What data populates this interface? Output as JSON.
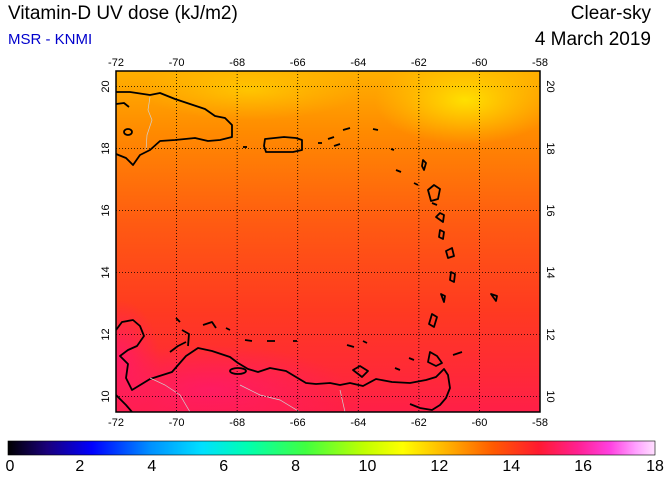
{
  "title": "Vitamin-D UV dose (kJ/m2)",
  "source": "MSR - KNMI",
  "sky_condition": "Clear-sky",
  "date": "4 March 2019",
  "map": {
    "lon_range": [
      -72,
      -58
    ],
    "lat_range": [
      9.5,
      20.5
    ],
    "lon_ticks": [
      -72,
      -70,
      -68,
      -66,
      -64,
      -62,
      -60,
      -58
    ],
    "lat_ticks": [
      10,
      12,
      14,
      16,
      18,
      20
    ],
    "lon_tick_labels": [
      "-72",
      "-70",
      "-68",
      "-66",
      "-64",
      "-62",
      "-60",
      "-58"
    ],
    "lat_tick_labels": [
      "10",
      "12",
      "14",
      "16",
      "18",
      "20"
    ],
    "gridlines": "dotted"
  },
  "colorbar": {
    "min": 0,
    "max": 18,
    "labels": [
      "0",
      "2",
      "4",
      "6",
      "8",
      "10",
      "12",
      "14",
      "16",
      "18"
    ]
  },
  "colors": {
    "high_value": "#ff2a3a",
    "mid_value": "#ff6a00",
    "low_value": "#ffa000",
    "coast": "#000000"
  }
}
